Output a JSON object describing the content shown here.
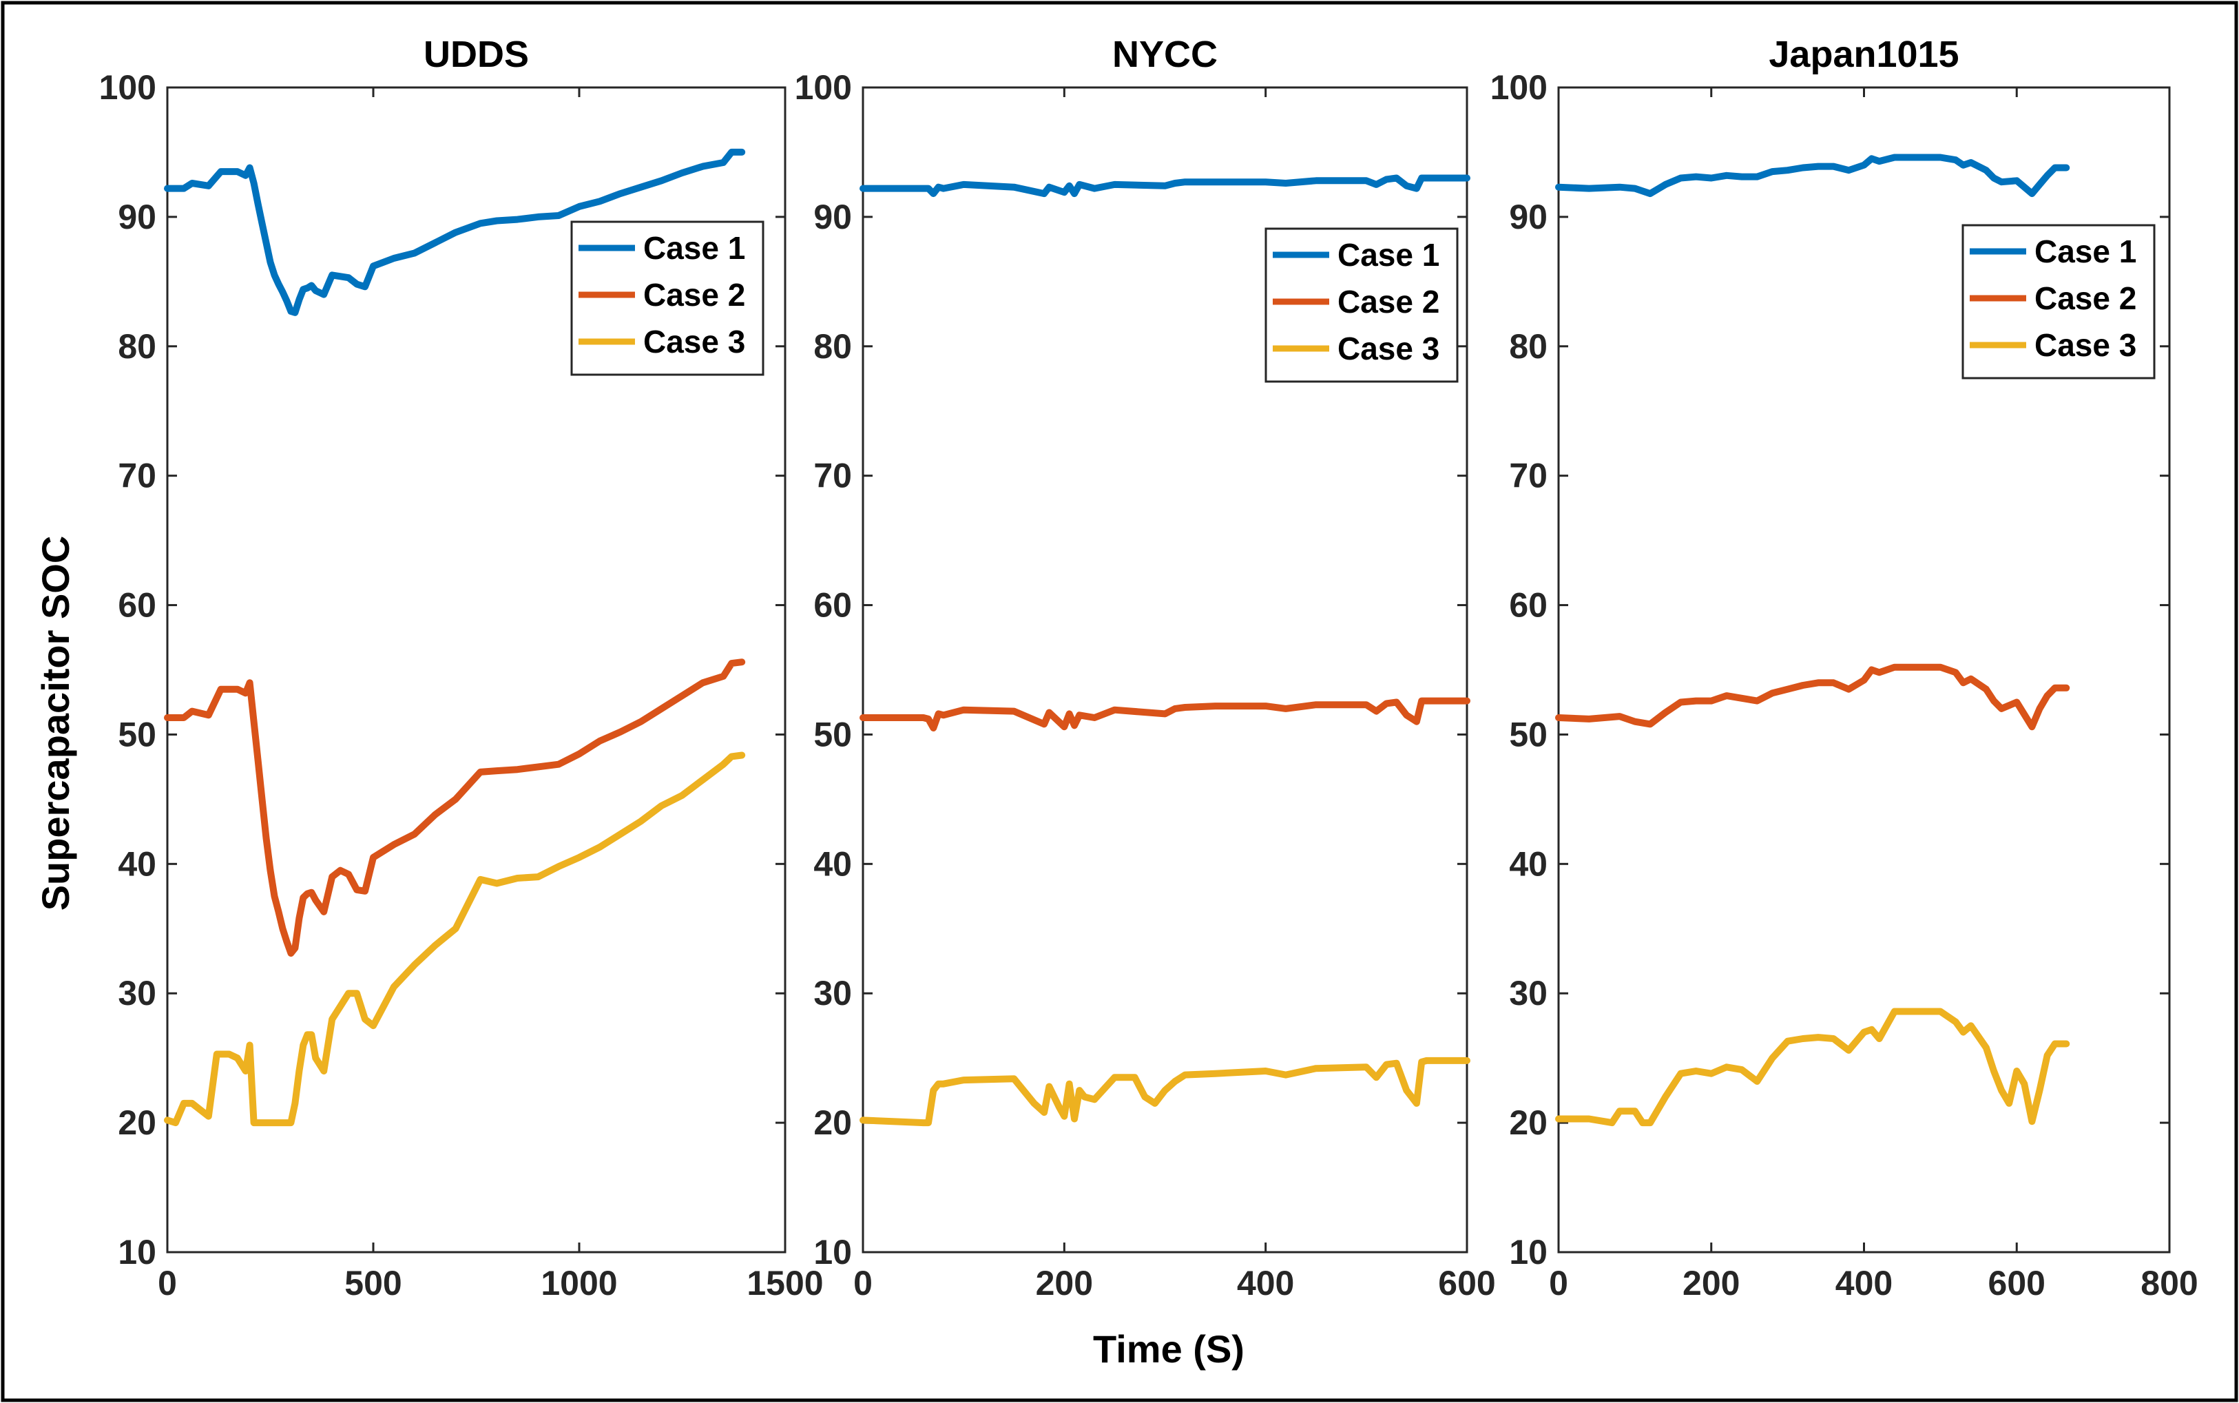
{
  "figure": {
    "xlabel": "Time (S)",
    "ylabel": "Supercapacitor  SOC"
  },
  "colors": {
    "case1": "#0072BD",
    "case2": "#D95319",
    "case3": "#EDB120"
  },
  "chart_data": [
    {
      "type": "line",
      "title": "UDDS",
      "xlabel": "Time (S)",
      "ylabel": "Supercapacitor  SOC",
      "xlim": [
        0,
        1500
      ],
      "ylim": [
        10,
        100
      ],
      "xticks": [
        "0",
        "500",
        "1000",
        "1500"
      ],
      "yticks": [
        "10",
        "20",
        "30",
        "40",
        "50",
        "60",
        "70",
        "80",
        "90",
        "100"
      ],
      "legend": "right-upper",
      "series": [
        {
          "name": "Case 1",
          "x": [
            0,
            40,
            60,
            100,
            130,
            150,
            170,
            190,
            200,
            210,
            220,
            230,
            240,
            250,
            260,
            270,
            280,
            290,
            300,
            310,
            320,
            330,
            340,
            350,
            360,
            380,
            400,
            420,
            440,
            460,
            480,
            500,
            550,
            600,
            650,
            700,
            760,
            800,
            850,
            900,
            950,
            1000,
            1050,
            1100,
            1150,
            1200,
            1250,
            1300,
            1350,
            1370,
            1395
          ],
          "values": [
            92.2,
            92.2,
            92.6,
            92.4,
            93.5,
            93.5,
            93.5,
            93.2,
            93.8,
            92.6,
            91,
            89.5,
            88,
            86.5,
            85.5,
            84.8,
            84.2,
            83.5,
            82.7,
            82.6,
            83.6,
            84.4,
            84.5,
            84.7,
            84.3,
            84,
            85.5,
            85.4,
            85.3,
            84.8,
            84.6,
            86.2,
            86.8,
            87.2,
            88,
            88.8,
            89.5,
            89.7,
            89.8,
            90,
            90.1,
            90.8,
            91.2,
            91.8,
            92.3,
            92.8,
            93.4,
            93.9,
            94.2,
            95,
            95
          ]
        },
        {
          "name": "Case 2",
          "x": [
            0,
            40,
            60,
            100,
            130,
            150,
            170,
            190,
            200,
            210,
            220,
            230,
            240,
            250,
            260,
            270,
            280,
            290,
            300,
            310,
            320,
            330,
            340,
            350,
            360,
            380,
            400,
            420,
            440,
            460,
            480,
            500,
            550,
            600,
            650,
            700,
            760,
            800,
            850,
            900,
            950,
            1000,
            1050,
            1100,
            1150,
            1200,
            1250,
            1300,
            1350,
            1370,
            1395
          ],
          "values": [
            51.3,
            51.3,
            51.8,
            51.5,
            53.5,
            53.5,
            53.5,
            53.2,
            54,
            51,
            48,
            45,
            42,
            39.5,
            37.5,
            36.3,
            35,
            34,
            33.1,
            33.5,
            35.8,
            37.4,
            37.7,
            37.8,
            37.2,
            36.3,
            39,
            39.5,
            39.2,
            38,
            37.9,
            40.5,
            41.5,
            42.3,
            43.8,
            45,
            47.1,
            47.2,
            47.3,
            47.5,
            47.7,
            48.5,
            49.5,
            50.2,
            51,
            52,
            53,
            54,
            54.5,
            55.5,
            55.6
          ]
        },
        {
          "name": "Case 3",
          "x": [
            0,
            20,
            40,
            60,
            80,
            100,
            120,
            150,
            170,
            190,
            200,
            210,
            220,
            240,
            260,
            280,
            300,
            310,
            320,
            330,
            340,
            350,
            360,
            380,
            400,
            420,
            440,
            460,
            480,
            500,
            550,
            600,
            650,
            700,
            760,
            800,
            850,
            900,
            950,
            1000,
            1050,
            1100,
            1150,
            1200,
            1250,
            1300,
            1350,
            1370,
            1395
          ],
          "values": [
            20.2,
            20,
            21.5,
            21.5,
            21,
            20.5,
            25.3,
            25.3,
            25,
            24,
            26,
            20,
            20,
            20,
            20,
            20,
            20,
            21.5,
            24,
            26,
            26.8,
            26.8,
            25,
            24,
            28,
            29,
            30,
            30,
            28,
            27.5,
            30.5,
            32.2,
            33.7,
            35,
            38.8,
            38.5,
            38.9,
            39,
            39.8,
            40.5,
            41.3,
            42.3,
            43.3,
            44.5,
            45.3,
            46.5,
            47.7,
            48.3,
            48.4
          ]
        }
      ]
    },
    {
      "type": "line",
      "title": "NYCC",
      "xlabel": "Time (S)",
      "xlim": [
        0,
        600
      ],
      "ylim": [
        10,
        100
      ],
      "xticks": [
        "0",
        "200",
        "400",
        "600"
      ],
      "yticks": [
        "10",
        "20",
        "30",
        "40",
        "50",
        "60",
        "70",
        "80",
        "90",
        "100"
      ],
      "legend": "right-upper",
      "series": [
        {
          "name": "Case 1",
          "x": [
            0,
            30,
            60,
            65,
            70,
            75,
            80,
            100,
            150,
            180,
            185,
            200,
            205,
            210,
            215,
            230,
            250,
            300,
            310,
            320,
            350,
            400,
            420,
            450,
            500,
            510,
            520,
            530,
            540,
            550,
            555,
            560,
            600
          ],
          "values": [
            92.2,
            92.2,
            92.2,
            92.2,
            91.8,
            92.3,
            92.2,
            92.5,
            92.3,
            91.8,
            92.3,
            91.9,
            92.4,
            91.8,
            92.5,
            92.2,
            92.5,
            92.4,
            92.6,
            92.7,
            92.7,
            92.7,
            92.6,
            92.8,
            92.8,
            92.5,
            92.9,
            93,
            92.4,
            92.2,
            93,
            93,
            93
          ]
        },
        {
          "name": "Case 2",
          "x": [
            0,
            30,
            60,
            65,
            70,
            75,
            80,
            100,
            150,
            180,
            185,
            200,
            205,
            210,
            215,
            230,
            250,
            300,
            310,
            320,
            350,
            400,
            420,
            450,
            500,
            510,
            520,
            530,
            540,
            550,
            555,
            560,
            600
          ],
          "values": [
            51.3,
            51.3,
            51.3,
            51.2,
            50.5,
            51.6,
            51.5,
            51.9,
            51.8,
            50.8,
            51.7,
            50.6,
            51.6,
            50.7,
            51.5,
            51.3,
            51.9,
            51.6,
            52,
            52.1,
            52.2,
            52.2,
            52,
            52.3,
            52.3,
            51.8,
            52.4,
            52.5,
            51.5,
            51,
            52.6,
            52.6,
            52.6
          ]
        },
        {
          "name": "Case 3",
          "x": [
            0,
            30,
            60,
            65,
            70,
            75,
            80,
            100,
            150,
            170,
            180,
            185,
            195,
            200,
            205,
            210,
            215,
            220,
            230,
            250,
            270,
            280,
            290,
            300,
            310,
            320,
            350,
            400,
            420,
            450,
            500,
            510,
            520,
            530,
            540,
            550,
            555,
            560,
            600
          ],
          "values": [
            20.2,
            20.1,
            20,
            20,
            22.5,
            23,
            23,
            23.3,
            23.4,
            21.5,
            20.8,
            22.8,
            21.2,
            20.5,
            23,
            20.3,
            22.5,
            22,
            21.8,
            23.5,
            23.5,
            22,
            21.5,
            22.5,
            23.2,
            23.7,
            23.8,
            24,
            23.7,
            24.2,
            24.3,
            23.5,
            24.5,
            24.6,
            22.5,
            21.5,
            24.7,
            24.8,
            24.8
          ]
        }
      ]
    },
    {
      "type": "line",
      "title": "Japan1015",
      "xlabel": "Time (S)",
      "xlim": [
        0,
        800
      ],
      "ylim": [
        10,
        100
      ],
      "xticks": [
        "0",
        "200",
        "400",
        "600",
        "800"
      ],
      "yticks": [
        "10",
        "20",
        "30",
        "40",
        "50",
        "60",
        "70",
        "80",
        "90",
        "100"
      ],
      "legend": "right-upper",
      "series": [
        {
          "name": "Case 1",
          "x": [
            0,
            40,
            80,
            100,
            120,
            140,
            160,
            180,
            200,
            220,
            240,
            260,
            280,
            300,
            320,
            340,
            360,
            380,
            400,
            410,
            420,
            440,
            460,
            480,
            500,
            520,
            530,
            540,
            560,
            570,
            580,
            600,
            620,
            630,
            640,
            650,
            665
          ],
          "values": [
            92.3,
            92.2,
            92.3,
            92.2,
            91.8,
            92.5,
            93,
            93.1,
            93,
            93.2,
            93.1,
            93.1,
            93.5,
            93.6,
            93.8,
            93.9,
            93.9,
            93.6,
            94,
            94.5,
            94.3,
            94.6,
            94.6,
            94.6,
            94.6,
            94.4,
            94,
            94.2,
            93.6,
            93,
            92.7,
            92.8,
            91.8,
            92.5,
            93.2,
            93.8,
            93.8
          ]
        },
        {
          "name": "Case 2",
          "x": [
            0,
            40,
            80,
            100,
            120,
            140,
            160,
            180,
            200,
            220,
            240,
            260,
            280,
            300,
            320,
            340,
            360,
            380,
            400,
            410,
            420,
            440,
            460,
            480,
            500,
            520,
            530,
            540,
            560,
            570,
            580,
            600,
            620,
            630,
            640,
            650,
            665
          ],
          "values": [
            51.3,
            51.2,
            51.4,
            51,
            50.8,
            51.7,
            52.5,
            52.6,
            52.6,
            53,
            52.8,
            52.6,
            53.2,
            53.5,
            53.8,
            54,
            54,
            53.5,
            54.2,
            55,
            54.8,
            55.2,
            55.2,
            55.2,
            55.2,
            54.8,
            54,
            54.3,
            53.5,
            52.6,
            52,
            52.5,
            50.6,
            52,
            53,
            53.6,
            53.6
          ]
        },
        {
          "name": "Case 3",
          "x": [
            0,
            40,
            70,
            80,
            100,
            110,
            120,
            140,
            160,
            180,
            200,
            220,
            240,
            260,
            280,
            300,
            320,
            340,
            360,
            380,
            400,
            410,
            420,
            440,
            460,
            480,
            500,
            520,
            530,
            540,
            560,
            570,
            580,
            590,
            600,
            610,
            620,
            630,
            640,
            650,
            665
          ],
          "values": [
            20.3,
            20.3,
            20,
            20.9,
            20.9,
            20,
            20,
            22,
            23.8,
            24,
            23.8,
            24.3,
            24.1,
            23.2,
            25,
            26.3,
            26.5,
            26.6,
            26.5,
            25.6,
            27,
            27.2,
            26.5,
            28.6,
            28.6,
            28.6,
            28.6,
            27.8,
            27,
            27.5,
            25.8,
            24,
            22.5,
            21.5,
            24,
            23,
            20.1,
            22.5,
            25.2,
            26.1,
            26.1
          ]
        }
      ]
    }
  ]
}
